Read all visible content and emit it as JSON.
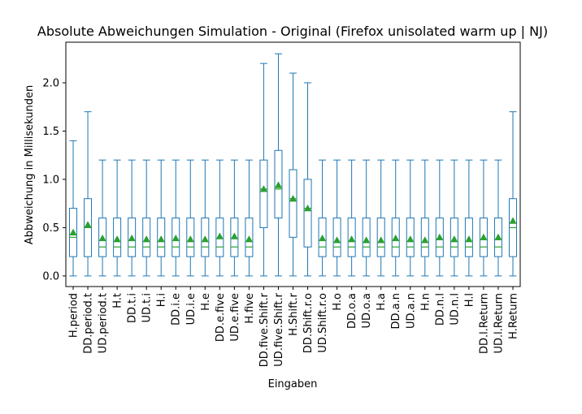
{
  "chart_data": {
    "type": "box",
    "title": "Absolute Abweichungen Simulation - Original (Firefox unisolated warm up | NJ)",
    "xlabel": "Eingaben",
    "ylabel": "Abbweichung in Millisekunden",
    "ylim": [
      -0.11,
      2.42
    ],
    "yticks": [
      0.0,
      0.5,
      1.0,
      1.5,
      2.0
    ],
    "ytick_labels": [
      "0.0",
      "0.5",
      "1.0",
      "1.5",
      "2.0"
    ],
    "grid": false,
    "colors": {
      "box": "#1f77b4",
      "median": "#2ca02c",
      "mean_marker": "#2ca02c"
    },
    "categories": [
      "H.period",
      "DD.period.t",
      "UD.period.t",
      "H.t",
      "DD.t.i",
      "UD.t.i",
      "H.i",
      "DD.i.e",
      "UD.i.e",
      "H.e",
      "DD.e.five",
      "UD.e.five",
      "H.five",
      "DD.five.Shift.r",
      "UD.five.Shift.r",
      "H.Shift.r",
      "DD.Shift.r.o",
      "UD.Shift.r.o",
      "H.o",
      "DD.o.a",
      "UD.o.a",
      "H.a",
      "DD.a.n",
      "UD.a.n",
      "H.n",
      "DD.n.l",
      "UD.n.l",
      "H.l",
      "DD.l.Return",
      "UD.l.Return",
      "H.Return"
    ],
    "boxes": [
      {
        "whislo": 0.0,
        "q1": 0.2,
        "med": 0.4,
        "q3": 0.7,
        "whishi": 1.4,
        "mean": 0.45
      },
      {
        "whislo": 0.0,
        "q1": 0.2,
        "med": 0.5,
        "q3": 0.8,
        "whishi": 1.7,
        "mean": 0.53
      },
      {
        "whislo": 0.0,
        "q1": 0.2,
        "med": 0.3,
        "q3": 0.6,
        "whishi": 1.2,
        "mean": 0.39
      },
      {
        "whislo": 0.0,
        "q1": 0.2,
        "med": 0.3,
        "q3": 0.6,
        "whishi": 1.2,
        "mean": 0.38
      },
      {
        "whislo": 0.0,
        "q1": 0.2,
        "med": 0.3,
        "q3": 0.6,
        "whishi": 1.2,
        "mean": 0.39
      },
      {
        "whislo": 0.0,
        "q1": 0.2,
        "med": 0.3,
        "q3": 0.6,
        "whishi": 1.2,
        "mean": 0.38
      },
      {
        "whislo": 0.0,
        "q1": 0.2,
        "med": 0.3,
        "q3": 0.6,
        "whishi": 1.2,
        "mean": 0.38
      },
      {
        "whislo": 0.0,
        "q1": 0.2,
        "med": 0.3,
        "q3": 0.6,
        "whishi": 1.2,
        "mean": 0.39
      },
      {
        "whislo": 0.0,
        "q1": 0.2,
        "med": 0.3,
        "q3": 0.6,
        "whishi": 1.2,
        "mean": 0.38
      },
      {
        "whislo": 0.0,
        "q1": 0.2,
        "med": 0.3,
        "q3": 0.6,
        "whishi": 1.2,
        "mean": 0.38
      },
      {
        "whislo": 0.0,
        "q1": 0.2,
        "med": 0.3,
        "q3": 0.6,
        "whishi": 1.2,
        "mean": 0.41
      },
      {
        "whislo": 0.0,
        "q1": 0.2,
        "med": 0.3,
        "q3": 0.6,
        "whishi": 1.2,
        "mean": 0.41
      },
      {
        "whislo": 0.0,
        "q1": 0.2,
        "med": 0.3,
        "q3": 0.6,
        "whishi": 1.2,
        "mean": 0.38
      },
      {
        "whislo": 0.0,
        "q1": 0.5,
        "med": 0.9,
        "q3": 1.2,
        "whishi": 2.2,
        "mean": 0.9
      },
      {
        "whislo": 0.0,
        "q1": 0.6,
        "med": 0.9,
        "q3": 1.3,
        "whishi": 2.3,
        "mean": 0.94
      },
      {
        "whislo": 0.0,
        "q1": 0.4,
        "med": 0.8,
        "q3": 1.1,
        "whishi": 2.1,
        "mean": 0.8
      },
      {
        "whislo": 0.0,
        "q1": 0.3,
        "med": 0.7,
        "q3": 1.0,
        "whishi": 2.0,
        "mean": 0.7
      },
      {
        "whislo": 0.0,
        "q1": 0.2,
        "med": 0.3,
        "q3": 0.6,
        "whishi": 1.2,
        "mean": 0.39
      },
      {
        "whislo": 0.0,
        "q1": 0.2,
        "med": 0.3,
        "q3": 0.6,
        "whishi": 1.2,
        "mean": 0.37
      },
      {
        "whislo": 0.0,
        "q1": 0.2,
        "med": 0.3,
        "q3": 0.6,
        "whishi": 1.2,
        "mean": 0.38
      },
      {
        "whislo": 0.0,
        "q1": 0.2,
        "med": 0.3,
        "q3": 0.6,
        "whishi": 1.2,
        "mean": 0.37
      },
      {
        "whislo": 0.0,
        "q1": 0.2,
        "med": 0.3,
        "q3": 0.6,
        "whishi": 1.2,
        "mean": 0.37
      },
      {
        "whislo": 0.0,
        "q1": 0.2,
        "med": 0.3,
        "q3": 0.6,
        "whishi": 1.2,
        "mean": 0.39
      },
      {
        "whislo": 0.0,
        "q1": 0.2,
        "med": 0.3,
        "q3": 0.6,
        "whishi": 1.2,
        "mean": 0.38
      },
      {
        "whislo": 0.0,
        "q1": 0.2,
        "med": 0.3,
        "q3": 0.6,
        "whishi": 1.2,
        "mean": 0.37
      },
      {
        "whislo": 0.0,
        "q1": 0.2,
        "med": 0.3,
        "q3": 0.6,
        "whishi": 1.2,
        "mean": 0.4
      },
      {
        "whislo": 0.0,
        "q1": 0.2,
        "med": 0.3,
        "q3": 0.6,
        "whishi": 1.2,
        "mean": 0.38
      },
      {
        "whislo": 0.0,
        "q1": 0.2,
        "med": 0.3,
        "q3": 0.6,
        "whishi": 1.2,
        "mean": 0.38
      },
      {
        "whislo": 0.0,
        "q1": 0.2,
        "med": 0.3,
        "q3": 0.6,
        "whishi": 1.2,
        "mean": 0.4
      },
      {
        "whislo": 0.0,
        "q1": 0.2,
        "med": 0.3,
        "q3": 0.6,
        "whishi": 1.2,
        "mean": 0.4
      },
      {
        "whislo": 0.0,
        "q1": 0.2,
        "med": 0.5,
        "q3": 0.8,
        "whishi": 1.7,
        "mean": 0.57
      }
    ]
  }
}
